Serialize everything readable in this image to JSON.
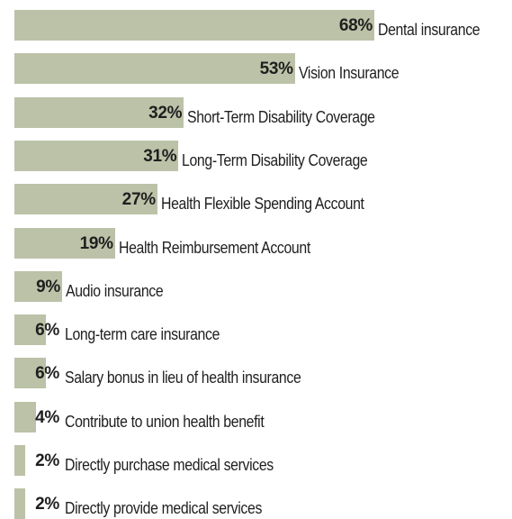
{
  "chart_data": {
    "type": "bar",
    "orientation": "horizontal",
    "categories": [
      "Dental insurance",
      "Vision Insurance",
      "Short-Term Disability Coverage",
      "Long-Term Disability Coverage",
      "Health Flexible Spending Account",
      "Health Reimbursement Account",
      "Audio insurance",
      "Long-term care insurance",
      "Salary bonus in lieu of health insurance",
      "Contribute to union health benefit",
      "Directly purchase medical services",
      "Directly provide medical services"
    ],
    "values": [
      68,
      53,
      32,
      31,
      27,
      19,
      9,
      6,
      6,
      4,
      2,
      2
    ],
    "value_labels": [
      "68%",
      "53%",
      "32%",
      "31%",
      "27%",
      "19%",
      "9%",
      "6%",
      "6%",
      "4%",
      "2%",
      "2%"
    ],
    "xlim": [
      0,
      68
    ],
    "grid": false,
    "legend": "none",
    "colors": {
      "bar": "#bcc2a8",
      "text": "#1f1f1f"
    }
  }
}
